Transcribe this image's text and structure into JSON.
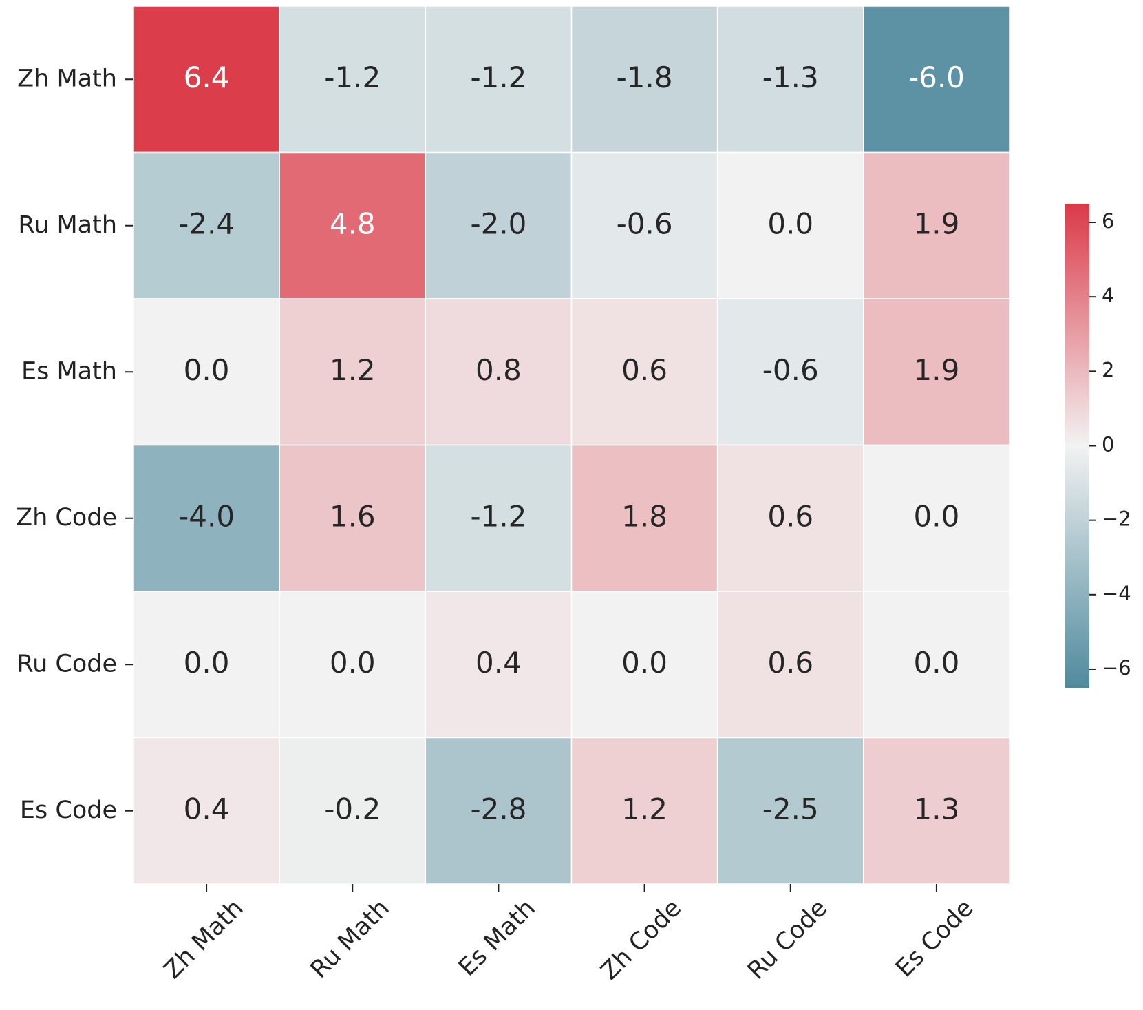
{
  "chart_data": {
    "type": "heatmap",
    "x_categories": [
      "Zh Math",
      "Ru Math",
      "Es Math",
      "Zh Code",
      "Ru Code",
      "Es Code"
    ],
    "y_categories": [
      "Zh Math",
      "Ru Math",
      "Es Math",
      "Zh Code",
      "Ru Code",
      "Es Code"
    ],
    "values": [
      [
        6.4,
        -1.2,
        -1.2,
        -1.8,
        -1.3,
        -6.0
      ],
      [
        -2.4,
        4.8,
        -2.0,
        -0.6,
        0.0,
        1.9
      ],
      [
        0.0,
        1.2,
        0.8,
        0.6,
        -0.6,
        1.9
      ],
      [
        -4.0,
        1.6,
        -1.2,
        1.8,
        0.6,
        0.0
      ],
      [
        0.0,
        0.0,
        0.4,
        0.0,
        0.6,
        0.0
      ],
      [
        0.4,
        -0.2,
        -2.8,
        1.2,
        -2.5,
        1.3
      ]
    ],
    "value_labels": [
      [
        "6.4",
        "-1.2",
        "-1.2",
        "-1.8",
        "-1.3",
        "-6.0"
      ],
      [
        "-2.4",
        "4.8",
        "-2.0",
        "-0.6",
        "0.0",
        "1.9"
      ],
      [
        "0.0",
        "1.2",
        "0.8",
        "0.6",
        "-0.6",
        "1.9"
      ],
      [
        "-4.0",
        "1.6",
        "-1.2",
        "1.8",
        "0.6",
        "0.0"
      ],
      [
        "0.0",
        "0.0",
        "0.4",
        "0.0",
        "0.6",
        "0.0"
      ],
      [
        "0.4",
        "-0.2",
        "-2.8",
        "1.2",
        "-2.5",
        "1.3"
      ]
    ],
    "colors": [
      "#4f8a9d",
      "#f2f2f2",
      "#db3a48"
    ],
    "clim": [
      -6.5,
      6.5
    ],
    "cticks": [
      {
        "value": -6,
        "label": "−6"
      },
      {
        "value": -4,
        "label": "−4"
      },
      {
        "value": -2,
        "label": "−2"
      },
      0,
      2,
      4,
      6
    ]
  }
}
